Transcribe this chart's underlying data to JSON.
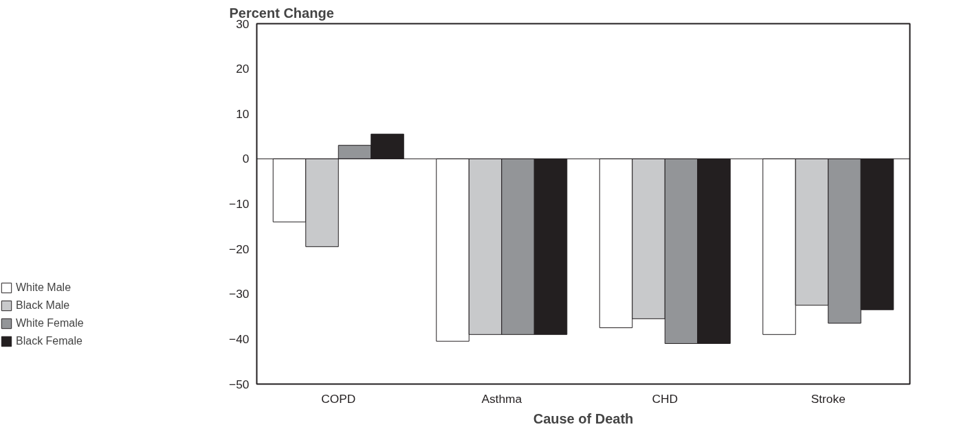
{
  "chart_data": {
    "type": "bar",
    "ylabel": "Percent Change",
    "xlabel": "Cause of Death",
    "categories": [
      "COPD",
      "Asthma",
      "CHD",
      "Stroke"
    ],
    "series": [
      {
        "name": "White Male",
        "color": "#ffffff",
        "values": [
          -14,
          -40.5,
          -37.5,
          -39
        ]
      },
      {
        "name": "Black Male",
        "color": "#c8c9cb",
        "values": [
          -19.5,
          -39,
          -35.5,
          -32.5
        ]
      },
      {
        "name": "White Female",
        "color": "#939598",
        "values": [
          3,
          -39,
          -41,
          -36.5
        ]
      },
      {
        "name": "Black Female",
        "color": "#231f20",
        "values": [
          5.5,
          -39,
          -41,
          -33.5
        ]
      }
    ],
    "ylim": [
      -50,
      30
    ],
    "yticks": [
      -50,
      -40,
      -30,
      -20,
      -10,
      0,
      10,
      20,
      30
    ],
    "ref_lines": [
      {
        "axis": "y",
        "value": 0
      }
    ],
    "legend": "left"
  }
}
